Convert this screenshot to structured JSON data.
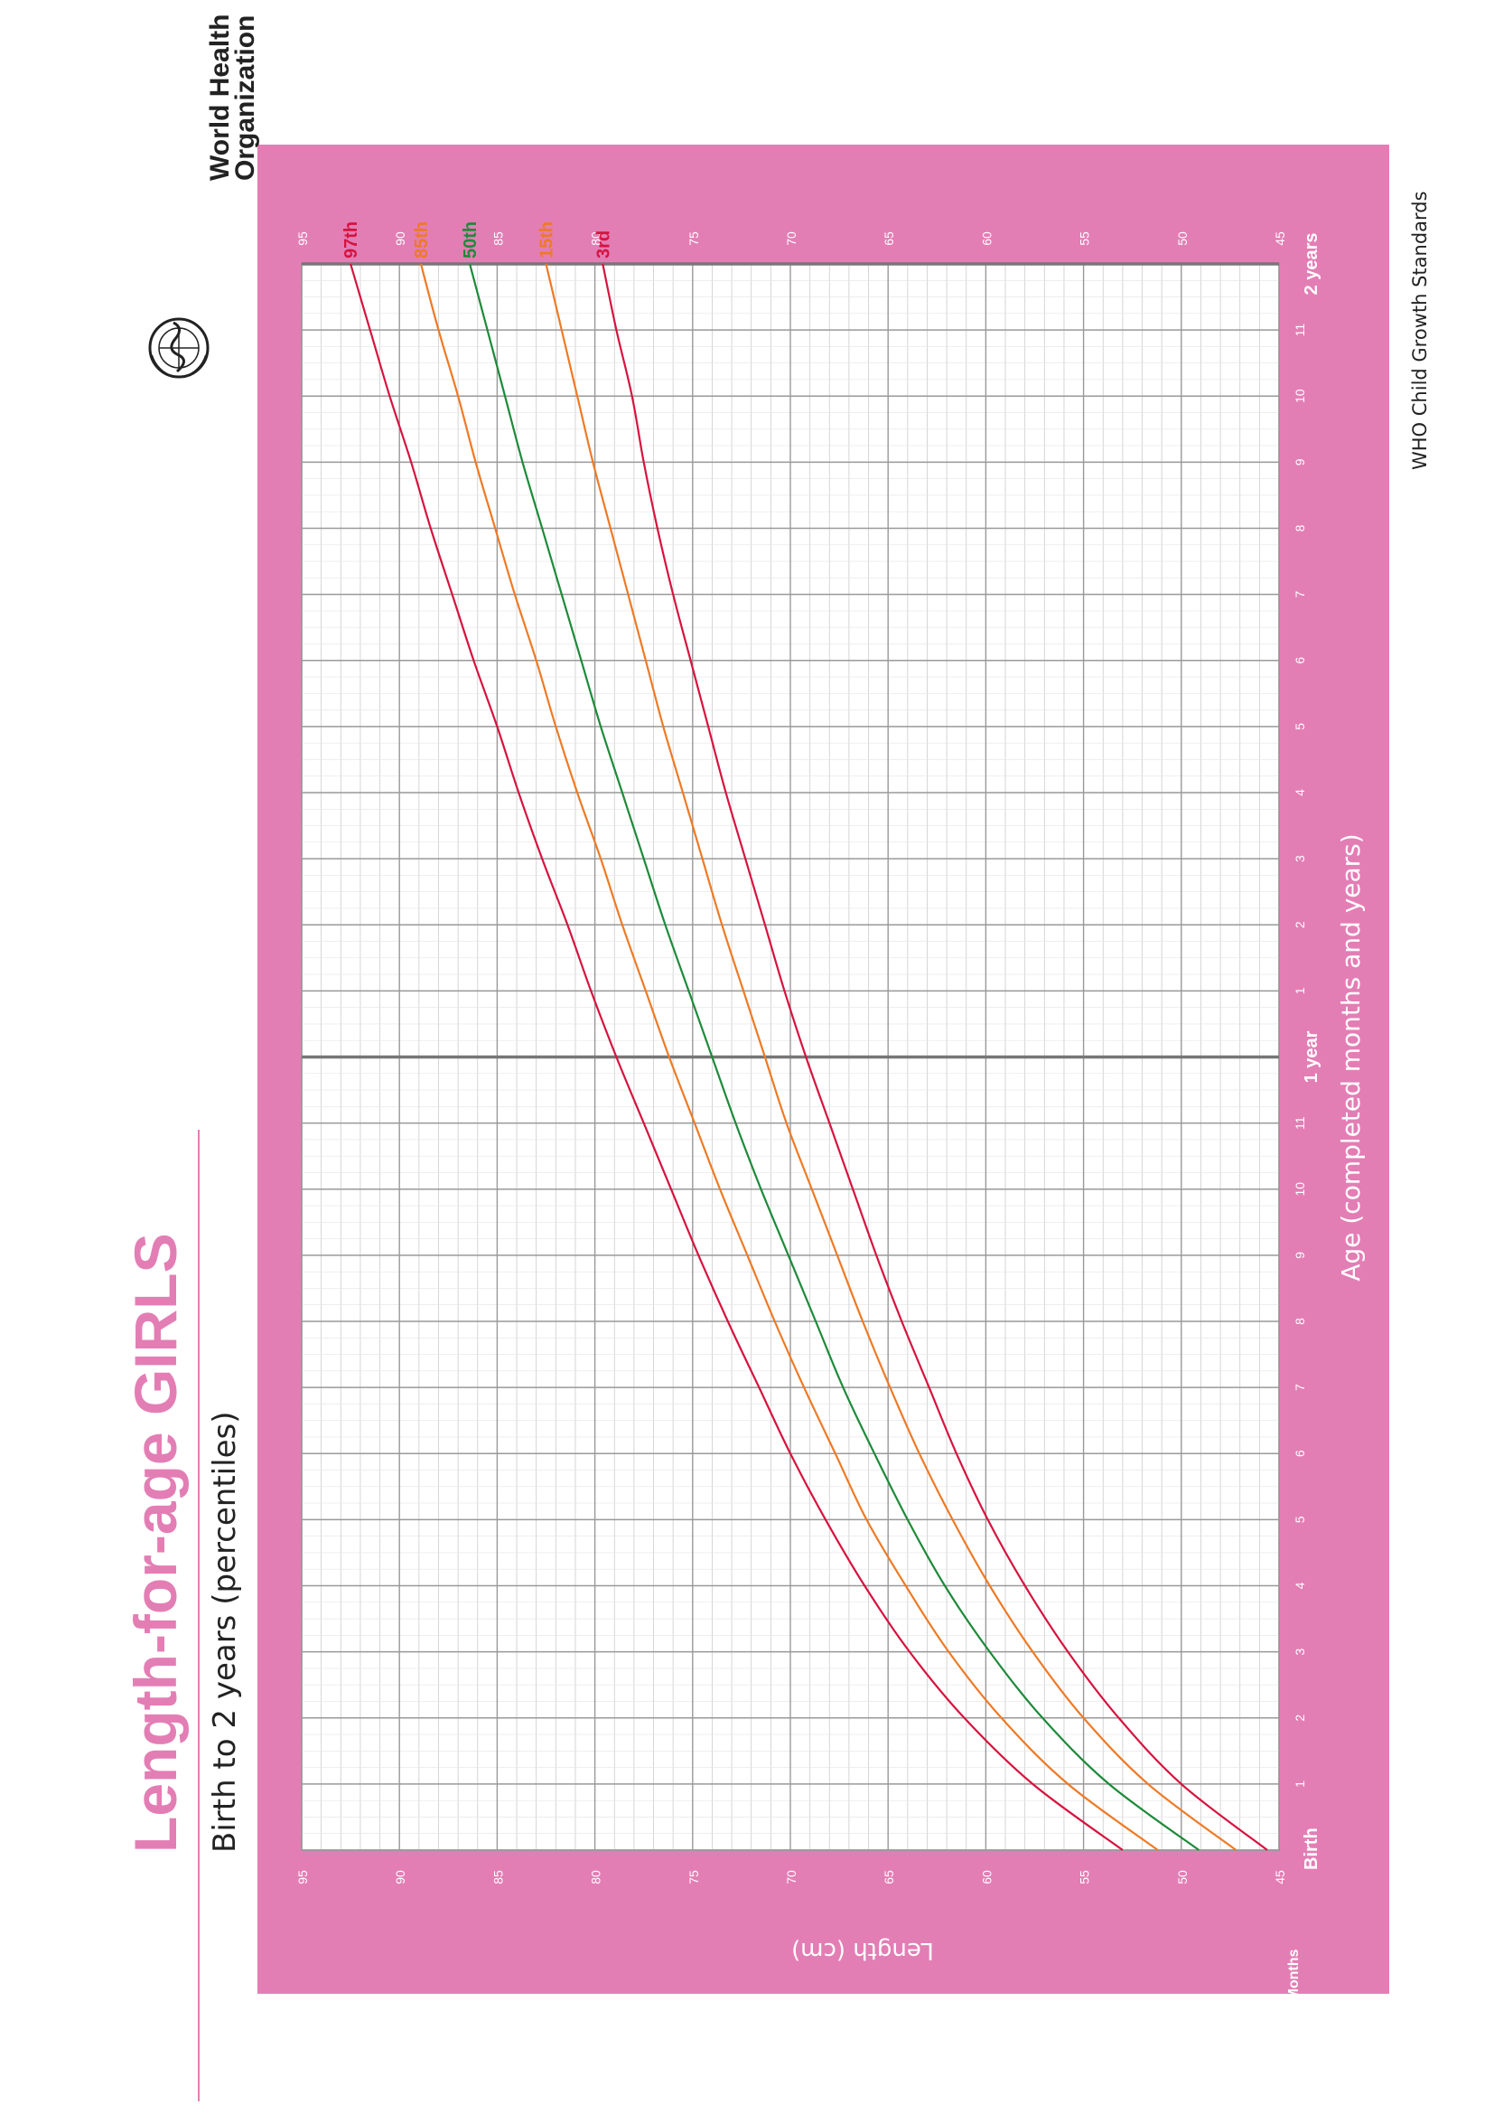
{
  "title": {
    "prefix": "Length-for-age ",
    "highlight": "GIRLS",
    "subtitle": "Birth to 2 years (percentiles)"
  },
  "organization": {
    "line1": "World Health",
    "line2": "Organization",
    "logo_icon": "who-emblem-icon"
  },
  "footer": "WHO Child Growth Standards",
  "colors": {
    "panel": "#E37EB5",
    "title_pink": "#E37EB5",
    "grid_major": "#999999",
    "grid_minor": "#cccccc",
    "year_line": "#777777",
    "red": "#D6133F",
    "orange": "#EE7A25",
    "green": "#1E8A3A"
  },
  "chart_data": {
    "type": "line",
    "orientation": "rotated-90-ccw",
    "xlabel": "Age (completed months and years)",
    "ylabel": "Length (cm)",
    "x_axis_caption": "Months",
    "xlim": [
      0,
      24
    ],
    "ylim": [
      45,
      95
    ],
    "x_tick_labels": [
      "Birth",
      "1",
      "2",
      "3",
      "4",
      "5",
      "6",
      "7",
      "8",
      "9",
      "10",
      "11",
      "1 year",
      "1",
      "2",
      "3",
      "4",
      "5",
      "6",
      "7",
      "8",
      "9",
      "10",
      "11",
      "2 years"
    ],
    "y_ticks": [
      45,
      50,
      55,
      60,
      65,
      70,
      75,
      80,
      85,
      90,
      95
    ],
    "grid": true,
    "series": [
      {
        "name": "97th",
        "color": "red",
        "x": [
          0,
          1,
          2,
          3,
          4,
          5,
          6,
          7,
          8,
          9,
          10,
          11,
          12,
          13,
          14,
          15,
          16,
          17,
          18,
          19,
          20,
          21,
          22,
          23,
          24
        ],
        "values": [
          53.0,
          57.6,
          61.1,
          63.9,
          66.2,
          68.2,
          70.0,
          71.6,
          73.2,
          74.7,
          76.1,
          77.5,
          78.9,
          80.2,
          81.4,
          82.7,
          83.9,
          85.0,
          86.2,
          87.3,
          88.4,
          89.4,
          90.5,
          91.5,
          92.5
        ]
      },
      {
        "name": "85th",
        "color": "orange",
        "x": [
          0,
          1,
          2,
          3,
          4,
          5,
          6,
          7,
          8,
          9,
          10,
          11,
          12,
          13,
          14,
          15,
          16,
          17,
          18,
          19,
          20,
          21,
          22,
          23,
          24
        ],
        "values": [
          51.2,
          55.8,
          59.2,
          61.9,
          64.1,
          66.1,
          67.7,
          69.3,
          70.8,
          72.2,
          73.6,
          74.9,
          76.2,
          77.4,
          78.6,
          79.7,
          80.9,
          82.0,
          83.0,
          84.1,
          85.1,
          86.1,
          87.0,
          88.0,
          88.9
        ]
      },
      {
        "name": "50th",
        "color": "green",
        "x": [
          0,
          1,
          2,
          3,
          4,
          5,
          6,
          7,
          8,
          9,
          10,
          11,
          12,
          13,
          14,
          15,
          16,
          17,
          18,
          19,
          20,
          21,
          22,
          23,
          24
        ],
        "values": [
          49.1,
          53.7,
          57.1,
          59.8,
          62.1,
          64.0,
          65.7,
          67.3,
          68.7,
          70.1,
          71.5,
          72.8,
          74.0,
          75.2,
          76.4,
          77.5,
          78.6,
          79.7,
          80.7,
          81.7,
          82.7,
          83.7,
          84.6,
          85.5,
          86.4
        ]
      },
      {
        "name": "15th",
        "color": "orange",
        "x": [
          0,
          1,
          2,
          3,
          4,
          5,
          6,
          7,
          8,
          9,
          10,
          11,
          12,
          13,
          14,
          15,
          16,
          17,
          18,
          19,
          20,
          21,
          22,
          23,
          24
        ],
        "values": [
          47.2,
          51.7,
          55.0,
          57.6,
          59.8,
          61.7,
          63.4,
          64.9,
          66.3,
          67.6,
          68.9,
          70.2,
          71.3,
          72.4,
          73.5,
          74.5,
          75.5,
          76.5,
          77.4,
          78.3,
          79.2,
          80.1,
          80.9,
          81.7,
          82.5
        ]
      },
      {
        "name": "3rd",
        "color": "red",
        "x": [
          0,
          1,
          2,
          3,
          4,
          5,
          6,
          7,
          8,
          9,
          10,
          11,
          12,
          13,
          14,
          15,
          16,
          17,
          18,
          19,
          20,
          21,
          22,
          23,
          24
        ],
        "values": [
          45.6,
          50.0,
          53.2,
          55.8,
          58.0,
          59.9,
          61.5,
          62.9,
          64.3,
          65.6,
          66.8,
          68.0,
          69.2,
          70.3,
          71.3,
          72.3,
          73.3,
          74.2,
          75.1,
          76.0,
          76.8,
          77.5,
          78.1,
          78.9,
          79.6
        ]
      }
    ]
  }
}
